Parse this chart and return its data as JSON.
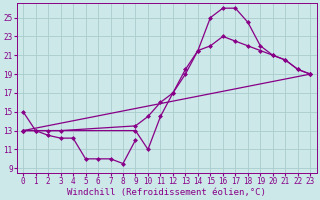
{
  "background_color": "#cce8e8",
  "grid_color": "#aacccc",
  "line_color": "#880088",
  "marker": "D",
  "marker_size": 2.5,
  "line_width": 0.9,
  "xlabel": "Windchill (Refroidissement éolien,°C)",
  "xlabel_fontsize": 6.5,
  "tick_fontsize": 5.5,
  "xlim": [
    -0.5,
    23.5
  ],
  "ylim": [
    8.5,
    26.5
  ],
  "yticks": [
    9,
    11,
    13,
    15,
    17,
    19,
    21,
    23,
    25
  ],
  "xticks": [
    0,
    1,
    2,
    3,
    4,
    5,
    6,
    7,
    8,
    9,
    10,
    11,
    12,
    13,
    14,
    15,
    16,
    17,
    18,
    19,
    20,
    21,
    22,
    23
  ],
  "line1_x": [
    0,
    1,
    2,
    3,
    4,
    5,
    6,
    7,
    8,
    9
  ],
  "line1_y": [
    15.0,
    13.0,
    12.5,
    12.2,
    12.2,
    10.0,
    10.0,
    10.0,
    9.5,
    12.0
  ],
  "line2_x": [
    0,
    1,
    2,
    3,
    9,
    10,
    11,
    12,
    13,
    14,
    15,
    16,
    17,
    18,
    19,
    20,
    21,
    22,
    23
  ],
  "line2_y": [
    13.0,
    13.0,
    13.0,
    13.0,
    13.5,
    14.5,
    16.0,
    17.0,
    19.0,
    21.5,
    22.0,
    23.0,
    22.5,
    22.0,
    21.5,
    21.0,
    20.5,
    19.5,
    19.0
  ],
  "line3_x": [
    0,
    9,
    10,
    11,
    12,
    13,
    14,
    15,
    16,
    17,
    18,
    19,
    20,
    21,
    22,
    23
  ],
  "line3_y": [
    13.0,
    13.0,
    11.0,
    14.5,
    17.0,
    19.5,
    21.5,
    25.0,
    26.0,
    26.0,
    24.5,
    22.0,
    21.0,
    20.5,
    19.5,
    19.0
  ],
  "line4_x": [
    0,
    23
  ],
  "line4_y": [
    13.0,
    19.0
  ]
}
